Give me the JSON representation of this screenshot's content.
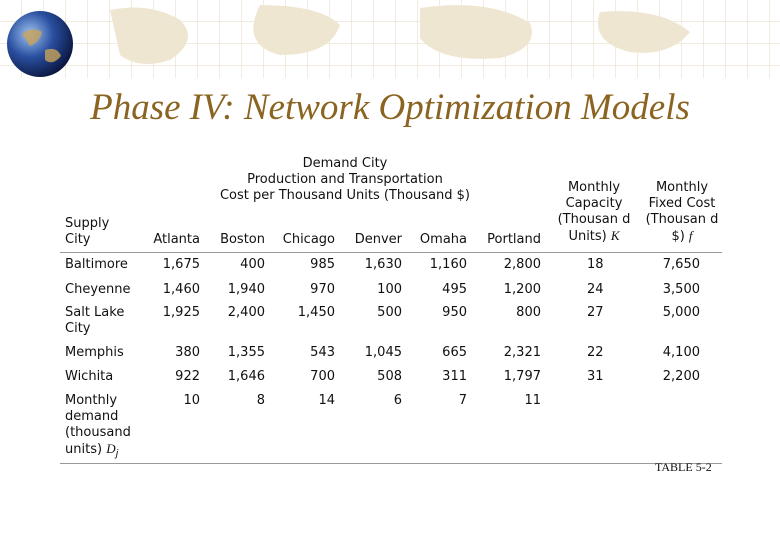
{
  "title": "Phase IV: Network Optimization Models",
  "table": {
    "group_header": [
      "Demand City",
      "Production and Transportation",
      "Cost per Thousand Units (Thousand $)"
    ],
    "row_header": "Supply City",
    "cities": [
      "Atlanta",
      "Boston",
      "Chicago",
      "Denver",
      "Omaha",
      "Portland"
    ],
    "capacity_header": {
      "text": "Monthly Capacity (Thousan d Units)",
      "symbol": "K"
    },
    "fixed_header": {
      "text": "Monthly Fixed Cost (Thousan d $)",
      "symbol": "f"
    },
    "rows": [
      [
        "Baltimore",
        "1,675",
        "400",
        "985",
        "1,630",
        "1,160",
        "2,800",
        "18",
        "7,650"
      ],
      [
        "Cheyenne",
        "1,460",
        "1,940",
        "970",
        "100",
        "495",
        "1,200",
        "24",
        "3,500"
      ],
      [
        "Salt Lake City",
        "1,925",
        "2,400",
        "1,450",
        "500",
        "950",
        "800",
        "27",
        "5,000"
      ],
      [
        "Memphis",
        "380",
        "1,355",
        "543",
        "1,045",
        "665",
        "2,321",
        "22",
        "4,100"
      ],
      [
        "Wichita",
        "922",
        "1,646",
        "700",
        "508",
        "311",
        "1,797",
        "31",
        "2,200"
      ]
    ],
    "demand_row": {
      "label": "Monthly demand (thousand units)",
      "symbol": "D",
      "subscript": "j",
      "values": [
        "10",
        "8",
        "14",
        "6",
        "7",
        "11"
      ]
    }
  },
  "caption": "TABLE 5-2"
}
